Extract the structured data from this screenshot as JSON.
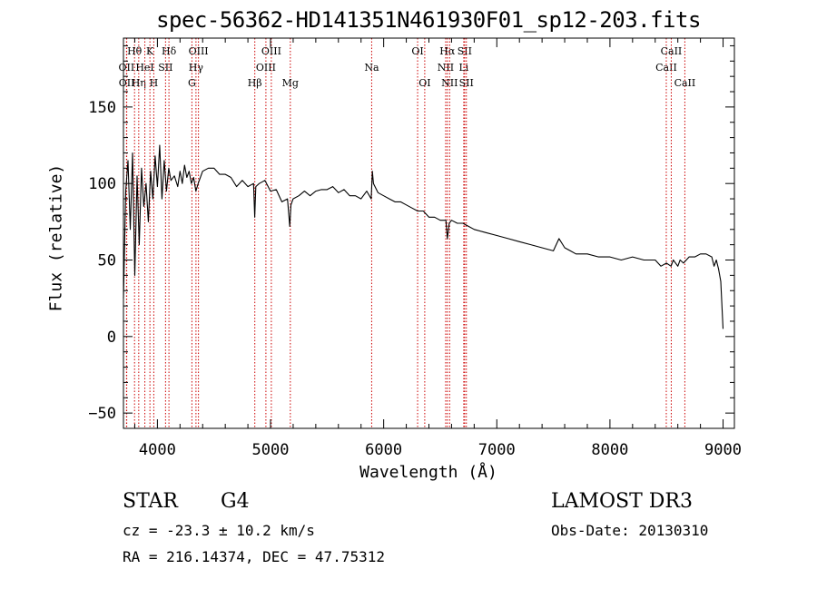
{
  "chart_data": {
    "type": "line",
    "title": "spec-56362-HD141351N461930F01_sp12-203.fits",
    "xlabel": "Wavelength (Å)",
    "ylabel": "Flux (relative)",
    "xlim": [
      3700,
      9100
    ],
    "ylim": [
      -60,
      195
    ],
    "xticks": [
      4000,
      5000,
      6000,
      7000,
      8000,
      9000
    ],
    "yticks": [
      -50,
      0,
      50,
      100,
      150
    ],
    "series": [
      {
        "name": "flux",
        "x": [
          3700,
          3720,
          3740,
          3760,
          3780,
          3800,
          3820,
          3840,
          3860,
          3880,
          3900,
          3920,
          3940,
          3960,
          3980,
          4000,
          4020,
          4040,
          4060,
          4080,
          4100,
          4120,
          4150,
          4180,
          4200,
          4220,
          4240,
          4260,
          4280,
          4300,
          4320,
          4340,
          4360,
          4400,
          4450,
          4500,
          4550,
          4600,
          4650,
          4700,
          4750,
          4800,
          4850,
          4860,
          4870,
          4900,
          4950,
          5000,
          5050,
          5100,
          5150,
          5170,
          5180,
          5200,
          5250,
          5300,
          5350,
          5400,
          5450,
          5500,
          5550,
          5600,
          5650,
          5700,
          5750,
          5800,
          5850,
          5890,
          5900,
          5910,
          5950,
          6000,
          6050,
          6100,
          6150,
          6200,
          6250,
          6300,
          6350,
          6400,
          6450,
          6500,
          6550,
          6563,
          6580,
          6600,
          6650,
          6700,
          6750,
          6800,
          6900,
          7000,
          7100,
          7200,
          7300,
          7400,
          7500,
          7550,
          7600,
          7650,
          7700,
          7800,
          7900,
          8000,
          8100,
          8200,
          8300,
          8400,
          8450,
          8500,
          8540,
          8560,
          8600,
          8620,
          8650,
          8700,
          8750,
          8800,
          8850,
          8900,
          8920,
          8940,
          8960,
          8980,
          9000
        ],
        "values": [
          25,
          95,
          115,
          70,
          120,
          40,
          105,
          60,
          110,
          85,
          100,
          75,
          108,
          90,
          118,
          98,
          125,
          90,
          115,
          95,
          110,
          102,
          105,
          98,
          108,
          100,
          112,
          104,
          108,
          100,
          104,
          95,
          100,
          108,
          110,
          110,
          106,
          106,
          104,
          98,
          102,
          98,
          100,
          78,
          98,
          100,
          102,
          95,
          96,
          88,
          90,
          72,
          86,
          90,
          92,
          95,
          92,
          95,
          96,
          96,
          98,
          94,
          96,
          92,
          92,
          90,
          95,
          90,
          108,
          100,
          94,
          92,
          90,
          88,
          88,
          86,
          84,
          82,
          82,
          78,
          78,
          76,
          76,
          64,
          74,
          76,
          74,
          74,
          72,
          70,
          68,
          66,
          64,
          62,
          60,
          58,
          56,
          64,
          58,
          56,
          54,
          54,
          52,
          52,
          50,
          52,
          50,
          50,
          46,
          48,
          46,
          50,
          46,
          50,
          48,
          52,
          52,
          54,
          54,
          52,
          46,
          50,
          44,
          36,
          5
        ]
      }
    ],
    "lines": [
      {
        "label": "OII",
        "wl": 3727,
        "row": 2
      },
      {
        "label": "OII",
        "wl": 3729,
        "row": 3
      },
      {
        "label": "Hθ",
        "wl": 3798,
        "row": 1
      },
      {
        "label": "Hη",
        "wl": 3835,
        "row": 3
      },
      {
        "label": "HeI",
        "wl": 3889,
        "row": 2
      },
      {
        "label": "K",
        "wl": 3934,
        "row": 1
      },
      {
        "label": "H",
        "wl": 3968,
        "row": 3
      },
      {
        "label": "SII",
        "wl": 4072,
        "row": 2
      },
      {
        "label": "Hδ",
        "wl": 4102,
        "row": 1
      },
      {
        "label": "G",
        "wl": 4305,
        "row": 3
      },
      {
        "label": "Hγ",
        "wl": 4341,
        "row": 2
      },
      {
        "label": "OIII",
        "wl": 4363,
        "row": 1
      },
      {
        "label": "Hβ",
        "wl": 4861,
        "row": 3
      },
      {
        "label": "OIII",
        "wl": 4959,
        "row": 2
      },
      {
        "label": "OIII",
        "wl": 5007,
        "row": 1
      },
      {
        "label": "Mg",
        "wl": 5175,
        "row": 3
      },
      {
        "label": "Na",
        "wl": 5894,
        "row": 2
      },
      {
        "label": "OI",
        "wl": 6300,
        "row": 1
      },
      {
        "label": "OI",
        "wl": 6363,
        "row": 3
      },
      {
        "label": "NII",
        "wl": 6548,
        "row": 2
      },
      {
        "label": "Hα",
        "wl": 6563,
        "row": 1
      },
      {
        "label": "NII",
        "wl": 6583,
        "row": 3
      },
      {
        "label": "SII",
        "wl": 6716,
        "row": 1
      },
      {
        "label": "Li",
        "wl": 6708,
        "row": 2
      },
      {
        "label": "SII",
        "wl": 6731,
        "row": 3
      },
      {
        "label": "CaII",
        "wl": 8498,
        "row": 2
      },
      {
        "label": "CaII",
        "wl": 8542,
        "row": 1
      },
      {
        "label": "CaII",
        "wl": 8662,
        "row": 3
      }
    ],
    "line_color": "#cc0000"
  },
  "info": {
    "object_class": "STAR",
    "subclass": "G4",
    "survey": "LAMOST DR3",
    "cz": "cz = -23.3 ± 10.2 km/s",
    "obs_date": "Obs-Date: 20130310",
    "radec": "RA = 216.14374, DEC =  47.75312"
  }
}
